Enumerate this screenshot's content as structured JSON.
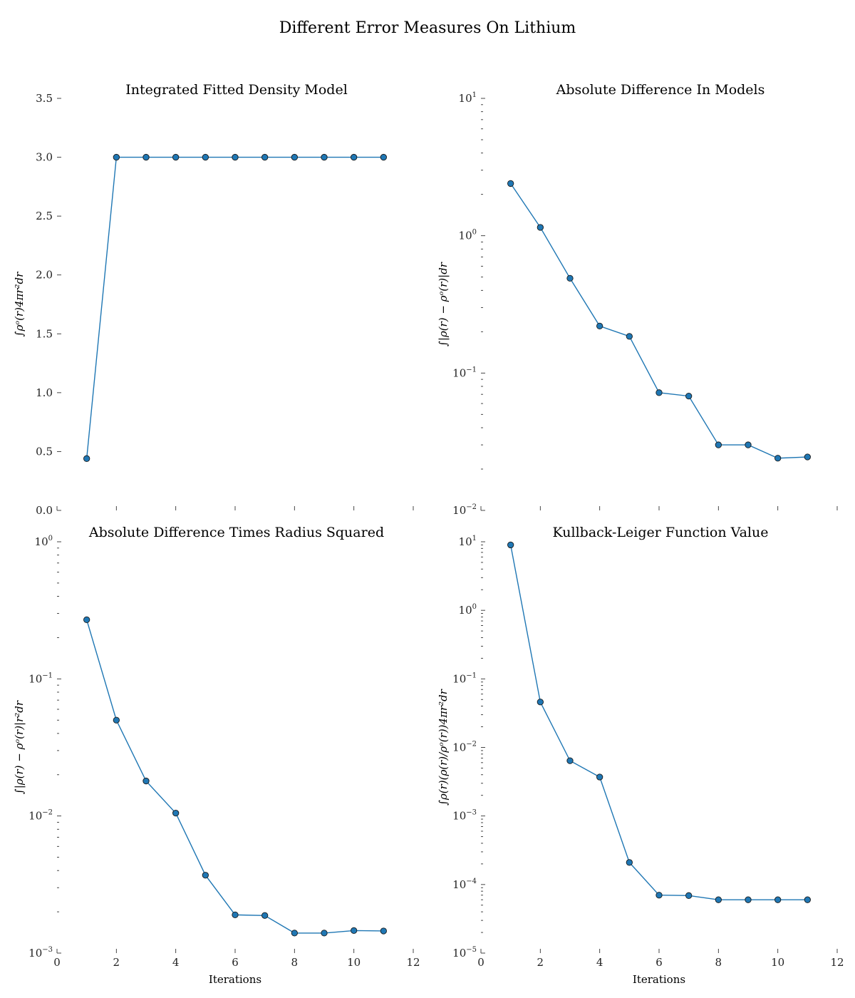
{
  "suptitle": "Different Error Measures On Lithium",
  "chart_data": [
    {
      "type": "line",
      "title": "Integrated Fitted Density Model",
      "xlabel": "",
      "ylabel": "∫ρᵒ(r)4πr²dr",
      "yscale": "linear",
      "xlim": [
        0,
        12
      ],
      "ylim": [
        0,
        3.5
      ],
      "xticks": [
        0,
        2,
        4,
        6,
        8,
        10,
        12
      ],
      "yticks": [
        0.0,
        0.5,
        1.0,
        1.5,
        2.0,
        2.5,
        3.0,
        3.5
      ],
      "ytick_labels": [
        "0.0",
        "0.5",
        "1.0",
        "1.5",
        "2.0",
        "2.5",
        "3.0",
        "3.5"
      ],
      "show_xtick_labels": false,
      "grid": false,
      "series": [
        {
          "x": [
            1,
            2,
            3,
            4,
            5,
            6,
            7,
            8,
            9,
            10,
            11
          ],
          "values": [
            0.44,
            3.0,
            3.0,
            3.0,
            3.0,
            3.0,
            3.0,
            3.0,
            3.0,
            3.0,
            3.0
          ]
        }
      ]
    },
    {
      "type": "line",
      "title": "Absolute Difference In Models",
      "xlabel": "",
      "ylabel": "∫|ρ(r) − ρᵒ(r)|dr",
      "yscale": "log",
      "xlim": [
        0,
        12
      ],
      "ylim": [
        0.01,
        10
      ],
      "xticks": [
        0,
        2,
        4,
        6,
        8,
        10,
        12
      ],
      "yticks": [
        0.01,
        0.1,
        1,
        10
      ],
      "ytick_labels": [
        [
          "10",
          "−2"
        ],
        [
          "10",
          "−1"
        ],
        [
          "10",
          "0"
        ],
        [
          "10",
          "1"
        ]
      ],
      "show_xtick_labels": false,
      "grid": false,
      "series": [
        {
          "x": [
            1,
            2,
            3,
            4,
            5,
            6,
            7,
            8,
            9,
            10,
            11
          ],
          "values": [
            2.4,
            1.15,
            0.49,
            0.22,
            0.185,
            0.072,
            0.068,
            0.03,
            0.03,
            0.024,
            0.0245
          ]
        }
      ]
    },
    {
      "type": "line",
      "title": "Absolute Difference Times Radius Squared",
      "xlabel": "Iterations",
      "ylabel": "∫|ρ(r) − ρᵒ(r)|r²dr",
      "yscale": "log",
      "xlim": [
        0,
        12
      ],
      "ylim": [
        0.001,
        1
      ],
      "xticks": [
        0,
        2,
        4,
        6,
        8,
        10,
        12
      ],
      "xtick_labels": [
        "0",
        "2",
        "4",
        "6",
        "8",
        "10",
        "12"
      ],
      "yticks": [
        0.001,
        0.01,
        0.1,
        1
      ],
      "ytick_labels": [
        [
          "10",
          "−3"
        ],
        [
          "10",
          "−2"
        ],
        [
          "10",
          "−1"
        ],
        [
          "10",
          "0"
        ]
      ],
      "show_xtick_labels": true,
      "grid": false,
      "series": [
        {
          "x": [
            1,
            2,
            3,
            4,
            5,
            6,
            7,
            8,
            9,
            10,
            11
          ],
          "values": [
            0.27,
            0.05,
            0.018,
            0.0105,
            0.0037,
            0.0019,
            0.00188,
            0.0014,
            0.0014,
            0.00146,
            0.00145
          ]
        }
      ]
    },
    {
      "type": "line",
      "title": "Kullback-Leiger Function Value",
      "xlabel": "Iterations",
      "ylabel": "∫ρ(r)(ρ(r)/ρᵒ(r))4πr²dr",
      "yscale": "log",
      "xlim": [
        0,
        12
      ],
      "ylim": [
        1e-05,
        10
      ],
      "xticks": [
        0,
        2,
        4,
        6,
        8,
        10,
        12
      ],
      "xtick_labels": [
        "0",
        "2",
        "4",
        "6",
        "8",
        "10",
        "12"
      ],
      "yticks": [
        1e-05,
        0.0001,
        0.001,
        0.01,
        0.1,
        1,
        10
      ],
      "ytick_labels": [
        [
          "10",
          "−5"
        ],
        [
          "10",
          "−4"
        ],
        [
          "10",
          "−3"
        ],
        [
          "10",
          "−2"
        ],
        [
          "10",
          "−1"
        ],
        [
          "10",
          "0"
        ],
        [
          "10",
          "1"
        ]
      ],
      "show_xtick_labels": true,
      "grid": false,
      "series": [
        {
          "x": [
            1,
            2,
            3,
            4,
            5,
            6,
            7,
            8,
            9,
            10,
            11
          ],
          "values": [
            9.0,
            0.046,
            0.0064,
            0.0037,
            0.00021,
            7e-05,
            6.9e-05,
            6e-05,
            6e-05,
            6e-05,
            6e-05
          ]
        }
      ]
    }
  ]
}
